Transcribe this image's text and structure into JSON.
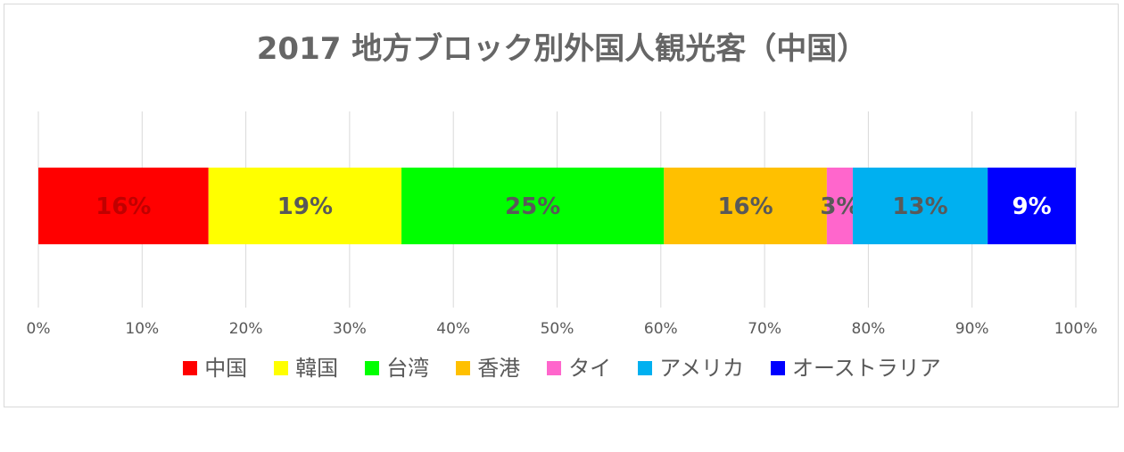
{
  "chart_data": {
    "type": "bar",
    "orientation": "horizontal",
    "stacked": true,
    "percent_stacked": true,
    "title": "2017 地方ブロック別外国人観光客（中国）",
    "xlim": [
      0,
      100
    ],
    "x_ticks": [
      "0%",
      "10%",
      "20%",
      "30%",
      "40%",
      "50%",
      "60%",
      "70%",
      "80%",
      "90%",
      "100%"
    ],
    "grid": true,
    "legend_position": "bottom",
    "series": [
      {
        "name": "中国",
        "value": 16.4,
        "label": "16%",
        "color": "#ff0000",
        "label_color": "#c00000"
      },
      {
        "name": "韓国",
        "value": 18.6,
        "label": "19%",
        "color": "#ffff00",
        "label_color": "#595959"
      },
      {
        "name": "台湾",
        "value": 25.3,
        "label": "25%",
        "color": "#00ff00",
        "label_color": "#595959"
      },
      {
        "name": "香港",
        "value": 15.7,
        "label": "16%",
        "color": "#ffc000",
        "label_color": "#595959"
      },
      {
        "name": "タイ",
        "value": 2.5,
        "label": "3%",
        "color": "#ff66cc",
        "label_color": "#595959"
      },
      {
        "name": "アメリカ",
        "value": 13.0,
        "label": "13%",
        "color": "#00b0f0",
        "label_color": "#595959"
      },
      {
        "name": "オーストラリア",
        "value": 8.5,
        "label": "9%",
        "color": "#0000ff",
        "label_color": "#ffffff"
      }
    ]
  }
}
